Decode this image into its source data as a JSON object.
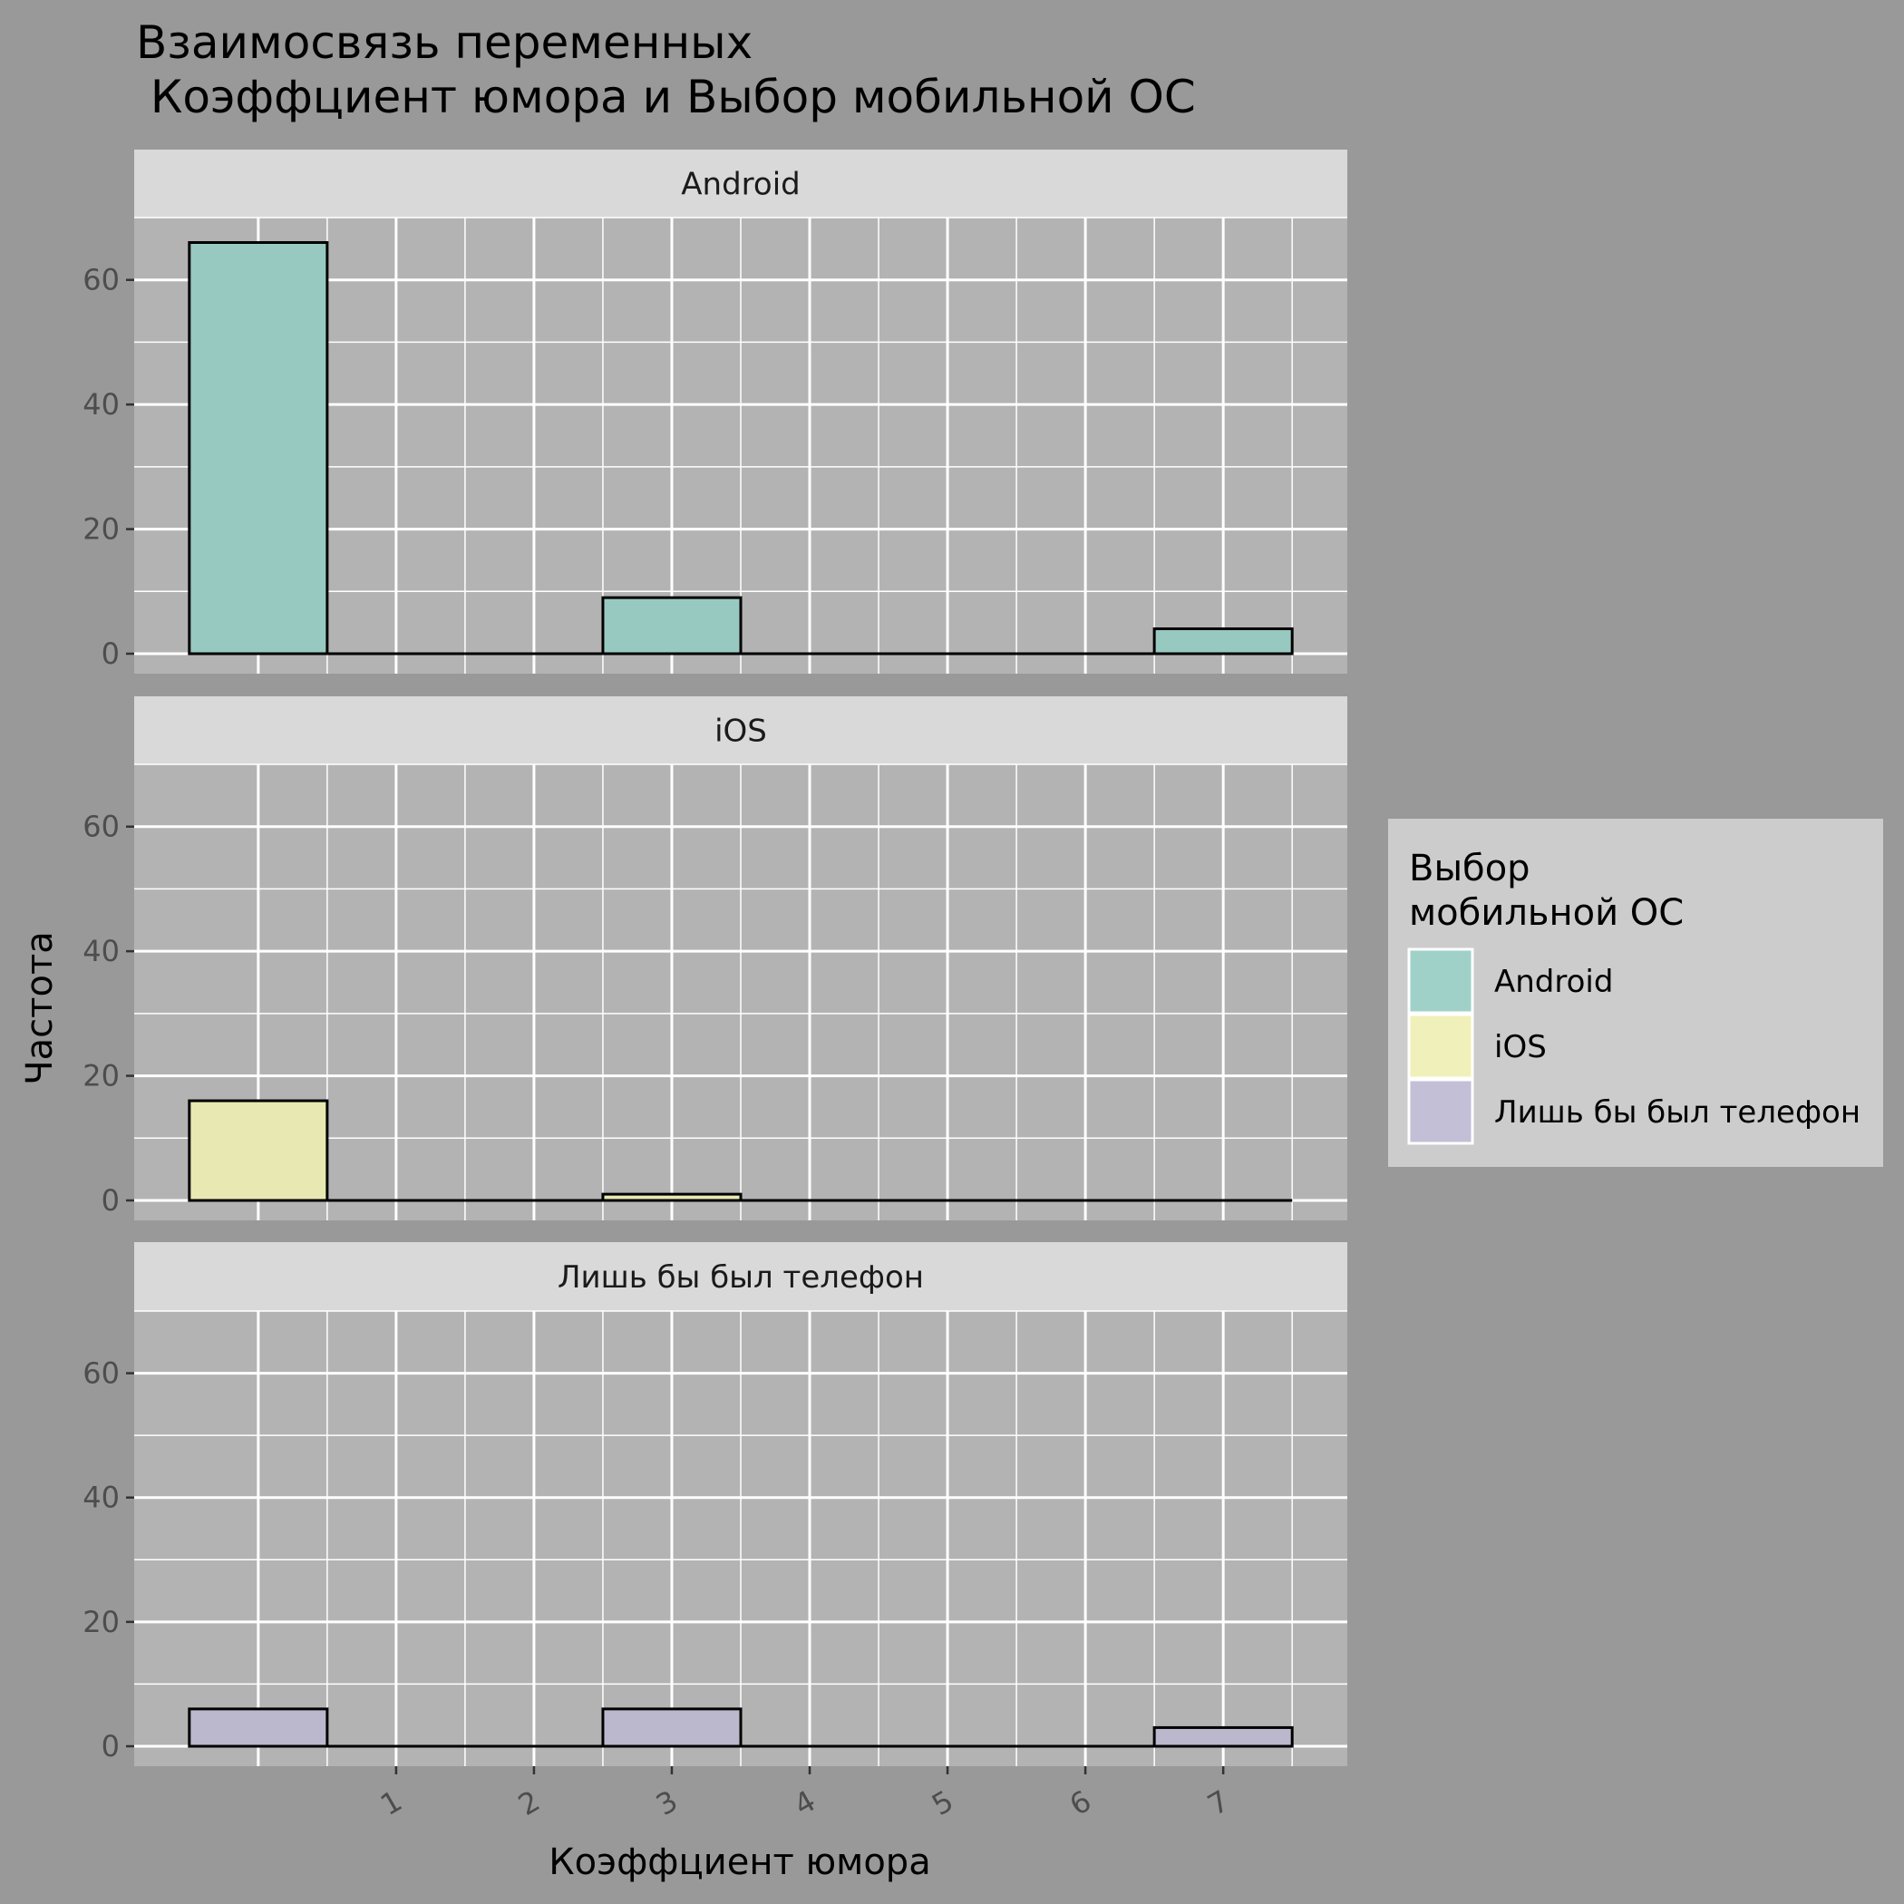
{
  "chart_data": {
    "type": "bar",
    "title_lines": [
      "Взаимосвязь переменных",
      " Коэффциент юмора и Выбор мобильной ОС"
    ],
    "xlabel": "Коэффциент юмора",
    "ylabel": "Частота",
    "x_ticks": [
      "1",
      "2",
      "3",
      "4",
      "5",
      "6",
      "7"
    ],
    "y_ticks": [
      "0",
      "20",
      "40",
      "60"
    ],
    "ylim": [
      0,
      70
    ],
    "xlim": [
      -0.9,
      7.9
    ],
    "bin_edges": [
      -0.5,
      0.5,
      1.5,
      2.5,
      3.5,
      4.5,
      5.5,
      6.5,
      7.5
    ],
    "grid": true,
    "legend": {
      "title_lines": [
        "Выбор",
        "мобильной ОС"
      ],
      "position": "right"
    },
    "series": [
      {
        "name": "Android",
        "color": "#8dd3c7",
        "values": [
          66,
          0,
          0,
          9,
          0,
          0,
          0,
          4
        ]
      },
      {
        "name": "iOS",
        "color": "#ffffb3",
        "values": [
          16,
          0,
          0,
          1,
          0,
          0,
          0,
          0
        ]
      },
      {
        "name": "Лишь бы был телефон",
        "color": "#bebada",
        "values": [
          6,
          0,
          0,
          6,
          0,
          0,
          0,
          3
        ]
      }
    ]
  }
}
